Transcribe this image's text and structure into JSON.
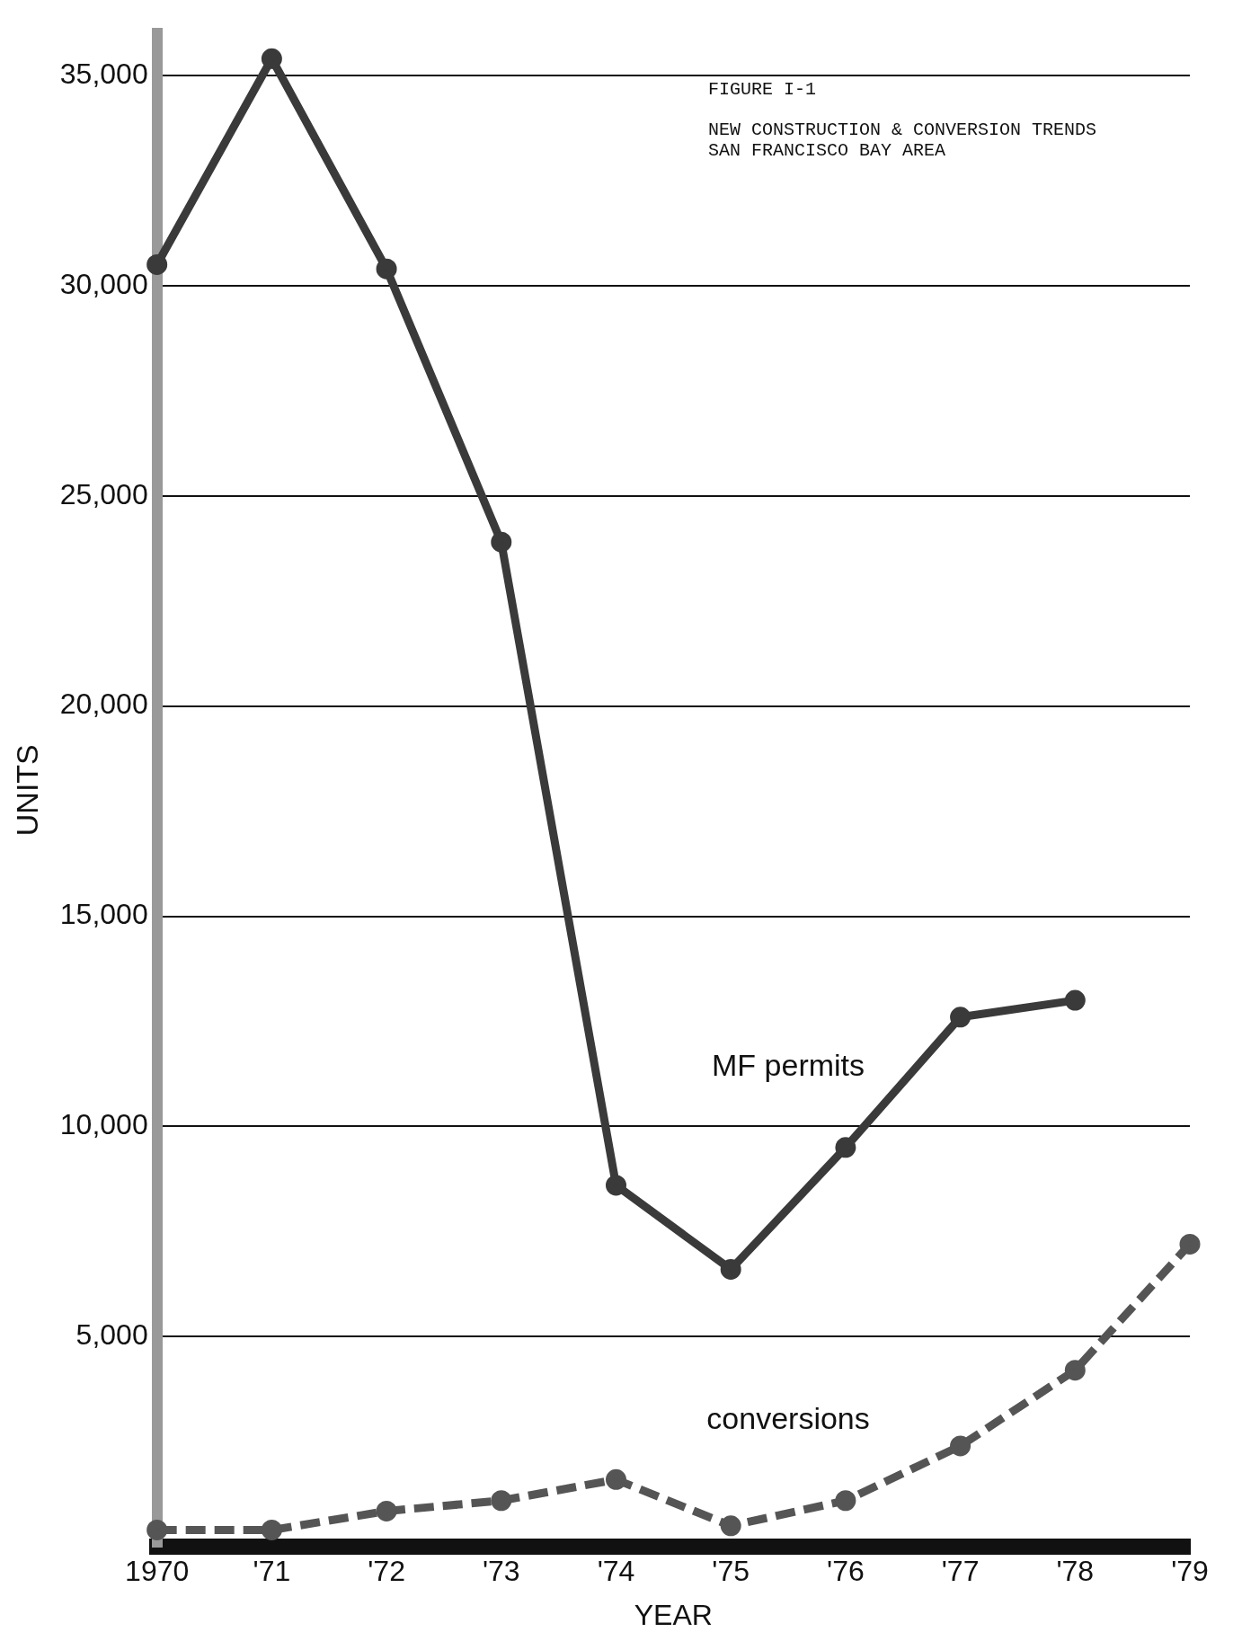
{
  "chart_data": {
    "type": "line",
    "title": "FIGURE I-1",
    "subtitle": "NEW CONSTRUCTION & CONVERSION TRENDS\nSAN FRANCISCO BAY AREA",
    "xlabel": "YEAR",
    "ylabel": "UNITS",
    "categories": [
      "1970",
      "'71",
      "'72",
      "'73",
      "'74",
      "'75",
      "'76",
      "'77",
      "'78",
      "'79"
    ],
    "series": [
      {
        "name": "MF permits",
        "color": "#3a3a3a",
        "line_style": "solid",
        "values": [
          30500,
          35400,
          30400,
          23900,
          8600,
          6600,
          9500,
          12600,
          13000,
          null
        ]
      },
      {
        "name": "conversions",
        "color": "#555555",
        "line_style": "dashed",
        "values": [
          400,
          400,
          850,
          1100,
          1600,
          500,
          1100,
          2400,
          4200,
          7200
        ]
      }
    ],
    "ylim": [
      0,
      36000
    ],
    "yticks": [
      {
        "value": 5000,
        "label": "5,000"
      },
      {
        "value": 10000,
        "label": "10,000"
      },
      {
        "value": 15000,
        "label": "15,000"
      },
      {
        "value": 20000,
        "label": "20,000"
      },
      {
        "value": 25000,
        "label": "25,000"
      },
      {
        "value": 30000,
        "label": "30,000"
      },
      {
        "value": 35000,
        "label": "35,000"
      }
    ],
    "grid": "y",
    "legend": false,
    "marker": "circle"
  }
}
